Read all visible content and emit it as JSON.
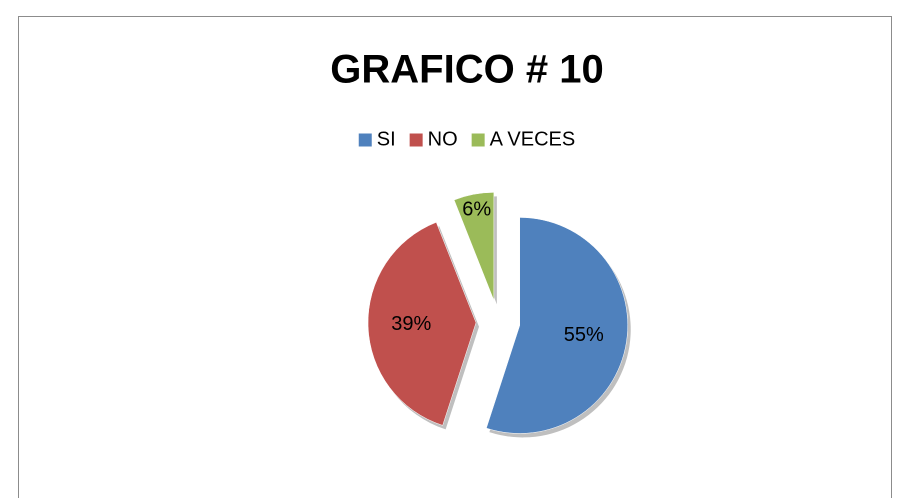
{
  "chart_data": {
    "type": "pie",
    "title": "GRAFICO #  10",
    "categories": [
      "SI",
      "NO",
      "A VECES"
    ],
    "values": [
      55,
      39,
      6
    ],
    "value_labels": [
      "55%",
      "39%",
      "6%"
    ],
    "colors": [
      "#4f81bd",
      "#c0504d",
      "#9bbb59"
    ],
    "legend": "top"
  }
}
